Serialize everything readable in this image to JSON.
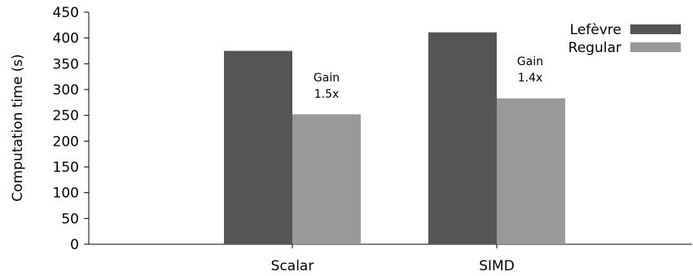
{
  "chart_data": {
    "type": "bar",
    "ylabel": "Computation time (s)",
    "ylim": [
      0,
      450
    ],
    "yticks": [
      0,
      50,
      100,
      150,
      200,
      250,
      300,
      350,
      400,
      450
    ],
    "grid": false,
    "legend_position": "top-right",
    "categories": [
      "Scalar",
      "SIMD"
    ],
    "series": [
      {
        "name": "Lefèvre",
        "values": [
          375,
          411
        ],
        "color": "#555555"
      },
      {
        "name": "Regular",
        "values": [
          252,
          283
        ],
        "color": "#999999"
      }
    ],
    "annotations": [
      {
        "category": "Scalar",
        "lines": [
          "Gain",
          "1.5x"
        ]
      },
      {
        "category": "SIMD",
        "lines": [
          "Gain",
          "1.4x"
        ]
      }
    ]
  }
}
